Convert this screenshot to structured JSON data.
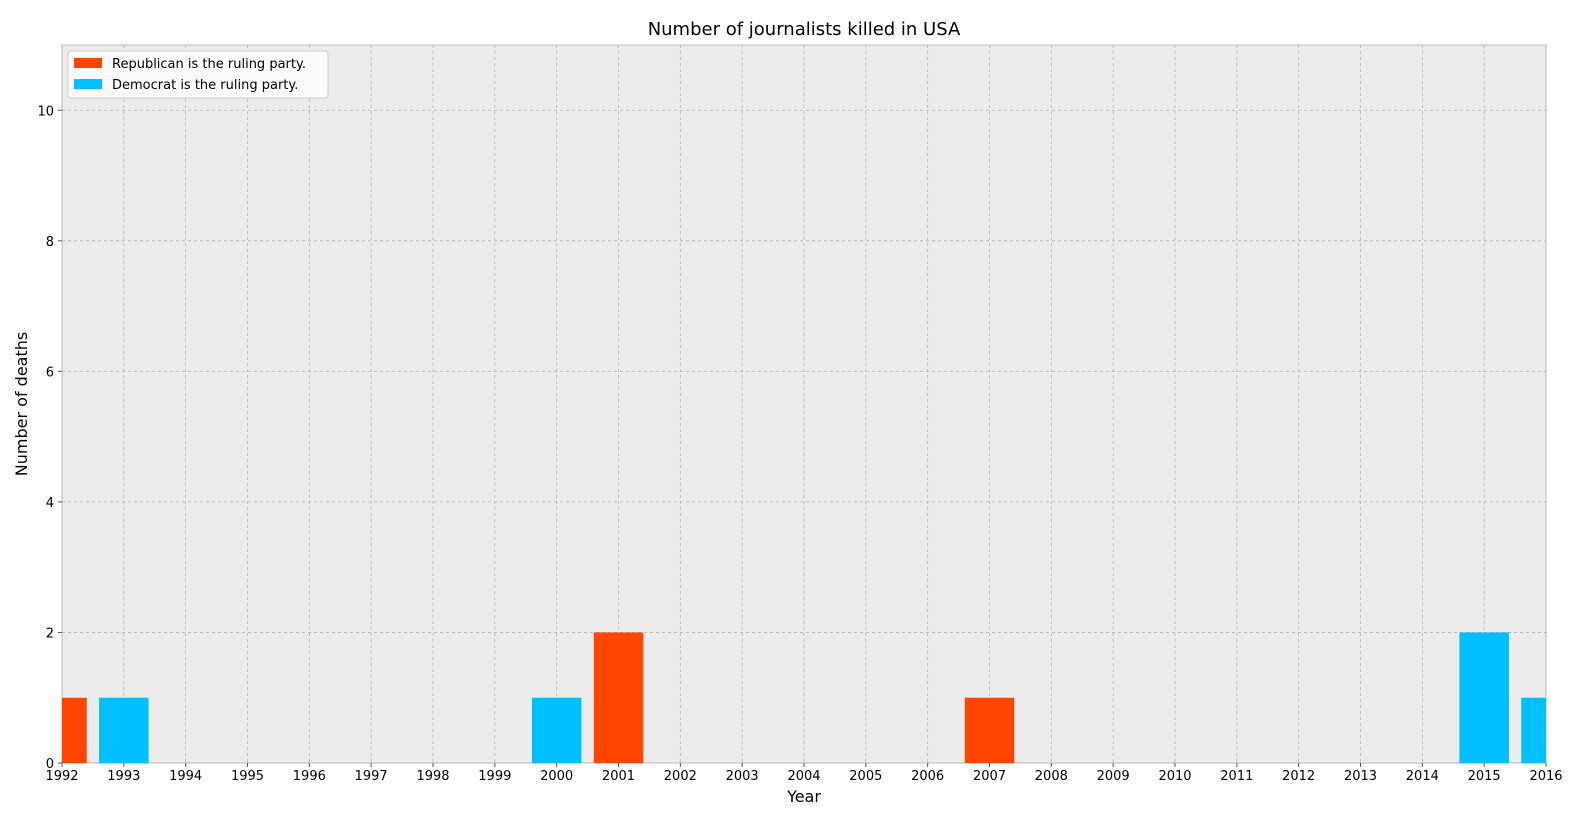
{
  "chart_data": {
    "type": "bar",
    "title": "Number of journalists killed in USA",
    "xlabel": "Year",
    "ylabel": "Number of deaths",
    "xlim": [
      1992,
      2016
    ],
    "ylim": [
      0,
      11
    ],
    "xticks": [
      "1992",
      "1993",
      "1994",
      "1995",
      "1996",
      "1997",
      "1998",
      "1999",
      "2000",
      "2001",
      "2002",
      "2003",
      "2004",
      "2005",
      "2006",
      "2007",
      "2008",
      "2009",
      "2010",
      "2011",
      "2012",
      "2013",
      "2014",
      "2015",
      "2016"
    ],
    "yticks": [
      0,
      2,
      4,
      6,
      8,
      10
    ],
    "grid": true,
    "legend_position": "top-left",
    "background": "#ececec",
    "series": [
      {
        "name": "Republican is the ruling party.",
        "color": "#ff4500",
        "points": [
          {
            "x": 1992,
            "y": 1
          },
          {
            "x": 2001,
            "y": 2
          },
          {
            "x": 2007,
            "y": 1
          }
        ]
      },
      {
        "name": "Democrat is the ruling party.",
        "color": "#00bfff",
        "points": [
          {
            "x": 1993,
            "y": 1
          },
          {
            "x": 2000,
            "y": 1
          },
          {
            "x": 2015,
            "y": 2
          },
          {
            "x": 2016,
            "y": 1
          }
        ]
      }
    ]
  }
}
